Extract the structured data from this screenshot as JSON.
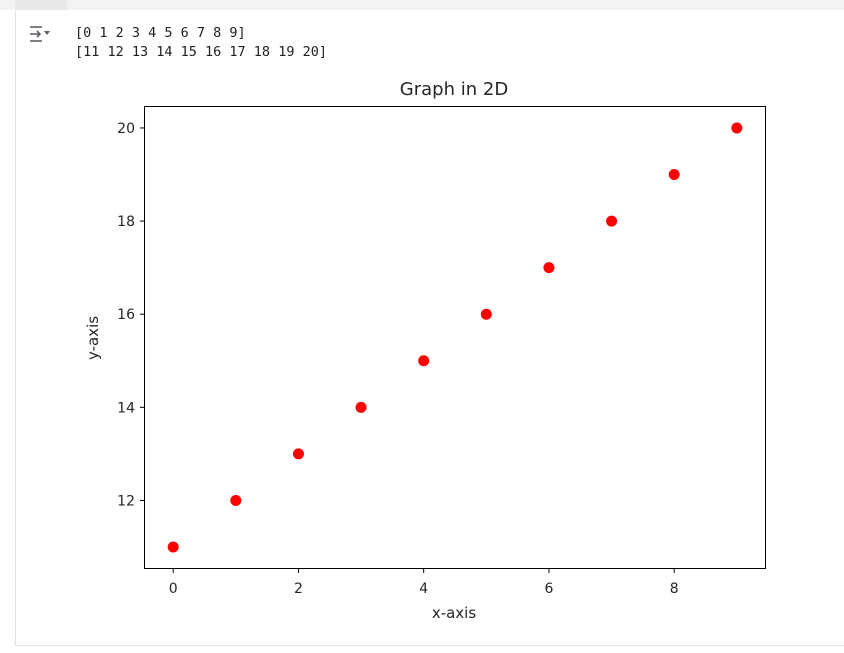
{
  "output": {
    "icon": "output-toggle-icon",
    "lines": [
      "[0 1 2 3 4 5 6 7 8 9]",
      "[11 12 13 14 15 16 17 18 19 20]"
    ]
  },
  "chart_data": {
    "type": "scatter",
    "title": "Graph in 2D",
    "xlabel": "x-axis",
    "ylabel": "y-axis",
    "x": [
      0,
      1,
      2,
      3,
      4,
      5,
      6,
      7,
      8,
      9
    ],
    "y": [
      11,
      12,
      13,
      14,
      15,
      16,
      17,
      18,
      19,
      20
    ],
    "xlim": [
      -0.45,
      9.45
    ],
    "ylim": [
      10.55,
      20.45
    ],
    "xticks": [
      0,
      2,
      4,
      6,
      8
    ],
    "yticks": [
      12,
      14,
      16,
      18,
      20
    ],
    "marker_color": "#ff0000",
    "grid": false,
    "legend": "none"
  }
}
